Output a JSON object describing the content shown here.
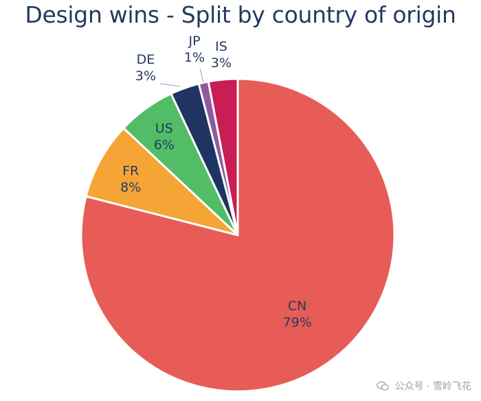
{
  "chart_data": {
    "type": "pie",
    "title": "Design wins - Split by country of origin",
    "slices": [
      {
        "label": "CN",
        "value": 79,
        "display": "79%",
        "color": "#e85c57"
      },
      {
        "label": "FR",
        "value": 8,
        "display": "8%",
        "color": "#f4a535"
      },
      {
        "label": "US",
        "value": 6,
        "display": "6%",
        "color": "#52bd66"
      },
      {
        "label": "DE",
        "value": 3,
        "display": "3%",
        "color": "#1f3461"
      },
      {
        "label": "JP",
        "value": 1,
        "display": "1%",
        "color": "#8e5a9e"
      },
      {
        "label": "IS",
        "value": 3,
        "display": "3%",
        "color": "#c81d55"
      }
    ],
    "start_angle_deg": 0,
    "direction": "clockwise"
  },
  "watermark": {
    "text": "公众号 · 雪岭飞花",
    "icon": "wechat-icon"
  }
}
